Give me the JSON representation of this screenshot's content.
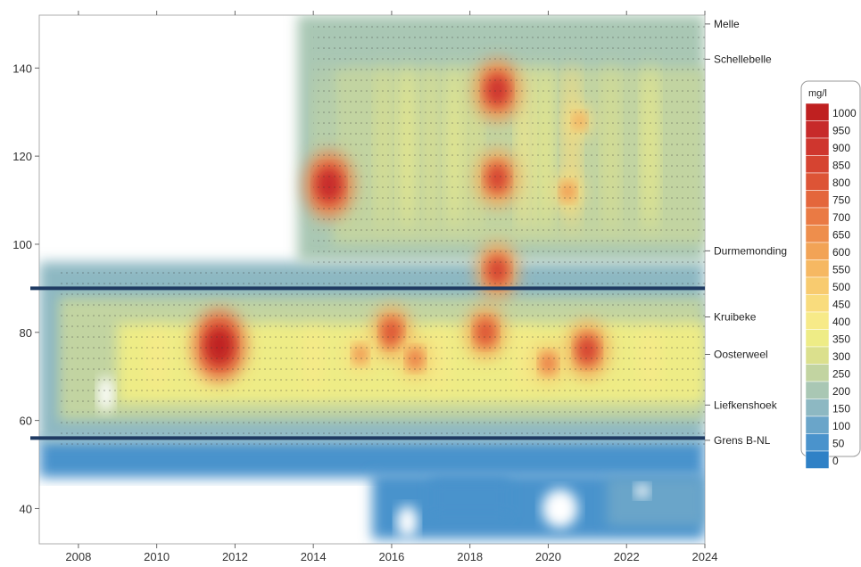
{
  "chart_data": {
    "type": "heatmap",
    "title": "",
    "xlabel": "",
    "ylabel": "",
    "xlim": [
      2007,
      2024
    ],
    "ylim": [
      32,
      152
    ],
    "x_ticks": [
      2008,
      2010,
      2012,
      2014,
      2016,
      2018,
      2020,
      2022,
      2024
    ],
    "y_ticks": [
      40,
      60,
      80,
      100,
      120,
      140
    ],
    "grid": false,
    "colorbar": {
      "title": "mg/l",
      "levels": [
        0,
        50,
        100,
        150,
        200,
        250,
        300,
        350,
        400,
        450,
        500,
        550,
        600,
        650,
        700,
        750,
        800,
        850,
        900,
        950,
        1000
      ],
      "colors": [
        "#2f81c6",
        "#4a93cc",
        "#6aa5c9",
        "#8db8c2",
        "#a9c7b4",
        "#c2d4a1",
        "#dbe08d",
        "#eeec86",
        "#f7ea88",
        "#f9dc7d",
        "#f8cb6f",
        "#f6b862",
        "#f2a356",
        "#ee8e4c",
        "#ea7a44",
        "#e4663c",
        "#dd5436",
        "#d64431",
        "#cf362e",
        "#c72a2a",
        "#bf2020"
      ],
      "placement": "right"
    },
    "locations": [
      {
        "name": "Melle",
        "y": 150
      },
      {
        "name": "Schellebelle",
        "y": 142
      },
      {
        "name": "Durmemonding",
        "y": 98.5
      },
      {
        "name": "Kruibeke",
        "y": 83.5
      },
      {
        "name": "Oosterweel",
        "y": 75
      },
      {
        "name": "Liefkenshoek",
        "y": 63.5
      },
      {
        "name": "Grens B-NL",
        "y": 55.5
      }
    ],
    "boundary_lines": [
      90,
      56
    ],
    "hotspots": [
      {
        "x": 2011.6,
        "y": 77,
        "value": 1000
      },
      {
        "x": 2018.7,
        "y": 135,
        "value": 900
      },
      {
        "x": 2018.7,
        "y": 115,
        "value": 850
      },
      {
        "x": 2018.7,
        "y": 94,
        "value": 850
      },
      {
        "x": 2014.4,
        "y": 113.5,
        "value": 950
      },
      {
        "x": 2016.0,
        "y": 80,
        "value": 800
      },
      {
        "x": 2018.4,
        "y": 80,
        "value": 800
      },
      {
        "x": 2021.0,
        "y": 76,
        "value": 850
      },
      {
        "x": 2016.6,
        "y": 74,
        "value": 700
      },
      {
        "x": 2015.2,
        "y": 75,
        "value": 650
      },
      {
        "x": 2020.0,
        "y": 73,
        "value": 700
      },
      {
        "x": 2020.8,
        "y": 128,
        "value": 600
      },
      {
        "x": 2020.5,
        "y": 112,
        "value": 650
      }
    ]
  }
}
